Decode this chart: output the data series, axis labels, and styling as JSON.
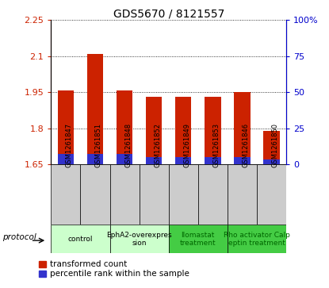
{
  "title": "GDS5670 / 8121557",
  "samples": [
    "GSM1261847",
    "GSM1261851",
    "GSM1261848",
    "GSM1261852",
    "GSM1261849",
    "GSM1261853",
    "GSM1261846",
    "GSM1261850"
  ],
  "red_values": [
    1.958,
    2.108,
    1.958,
    1.932,
    1.93,
    1.932,
    1.952,
    1.787
  ],
  "blue_percentiles": [
    7,
    7,
    7,
    5,
    5,
    5,
    5,
    3
  ],
  "ylim_left": [
    1.65,
    2.25
  ],
  "ylim_right": [
    0,
    100
  ],
  "yticks_left": [
    1.65,
    1.8,
    1.95,
    2.1,
    2.25
  ],
  "yticks_right": [
    0,
    25,
    50,
    75,
    100
  ],
  "ytick_labels_left": [
    "1.65",
    "1.8",
    "1.95",
    "2.1",
    "2.25"
  ],
  "ytick_labels_right": [
    "0",
    "25",
    "50",
    "75",
    "100%"
  ],
  "protocols": [
    {
      "label": "control",
      "span": [
        0,
        2
      ],
      "color": "#ccffcc",
      "text_color": "#000000"
    },
    {
      "label": "EphA2-overexpres\nsion",
      "span": [
        2,
        4
      ],
      "color": "#ccffcc",
      "text_color": "#000000"
    },
    {
      "label": "Ilomastat\ntreatment",
      "span": [
        4,
        6
      ],
      "color": "#44cc44",
      "text_color": "#006600"
    },
    {
      "label": "Rho activator Calp\neptin treatment",
      "span": [
        6,
        8
      ],
      "color": "#44cc44",
      "text_color": "#006600"
    }
  ],
  "protocol_label": "protocol",
  "legend_red": "transformed count",
  "legend_blue": "percentile rank within the sample",
  "bar_width": 0.55,
  "base_value": 1.65,
  "bg_color": "#ffffff",
  "plot_bg": "#ffffff",
  "red_color": "#cc2200",
  "blue_color": "#3333cc",
  "left_axis_color": "#cc2200",
  "right_axis_color": "#0000cc",
  "sample_bg_color": "#cccccc"
}
